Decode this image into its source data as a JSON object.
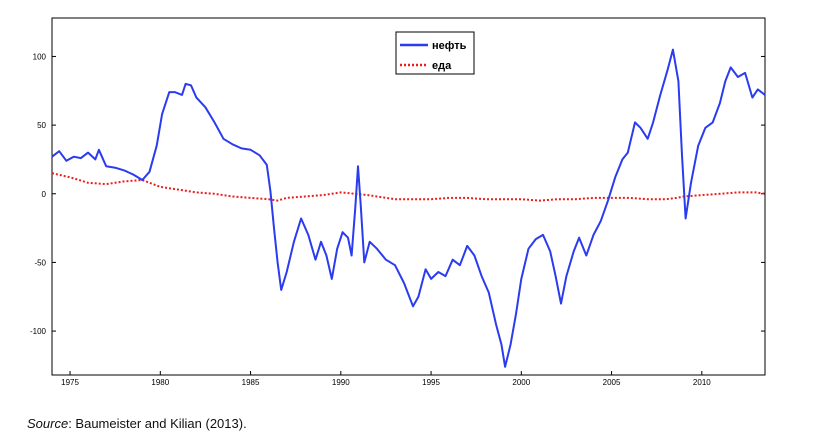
{
  "chart_data": {
    "type": "line",
    "x_ticks": [
      1975,
      1980,
      1985,
      1990,
      1995,
      2000,
      2005,
      2010
    ],
    "y_ticks": [
      100,
      50,
      0,
      -50,
      -100
    ],
    "xlim": [
      1974.0,
      2013.5
    ],
    "ylim": [
      -132,
      128
    ],
    "grid": false,
    "legend_position": "top-center",
    "series": [
      {
        "name": "нефть",
        "color": "#2a3bf0",
        "style": "solid",
        "points": [
          [
            1974.0,
            27
          ],
          [
            1974.4,
            31
          ],
          [
            1974.8,
            24
          ],
          [
            1975.2,
            27
          ],
          [
            1975.6,
            26
          ],
          [
            1976.0,
            30
          ],
          [
            1976.4,
            25
          ],
          [
            1976.6,
            32
          ],
          [
            1977.0,
            20
          ],
          [
            1977.5,
            19
          ],
          [
            1978.0,
            17
          ],
          [
            1978.5,
            14
          ],
          [
            1979.0,
            10
          ],
          [
            1979.4,
            16
          ],
          [
            1979.8,
            35
          ],
          [
            1980.1,
            58
          ],
          [
            1980.5,
            74
          ],
          [
            1980.8,
            74
          ],
          [
            1981.2,
            72
          ],
          [
            1981.4,
            80
          ],
          [
            1981.7,
            79
          ],
          [
            1982.0,
            70
          ],
          [
            1982.5,
            63
          ],
          [
            1983.0,
            52
          ],
          [
            1983.5,
            40
          ],
          [
            1984.0,
            36
          ],
          [
            1984.5,
            33
          ],
          [
            1985.0,
            32
          ],
          [
            1985.5,
            28
          ],
          [
            1985.9,
            21
          ],
          [
            1986.1,
            2
          ],
          [
            1986.3,
            -25
          ],
          [
            1986.5,
            -50
          ],
          [
            1986.7,
            -70
          ],
          [
            1987.0,
            -57
          ],
          [
            1987.4,
            -35
          ],
          [
            1987.8,
            -18
          ],
          [
            1988.2,
            -30
          ],
          [
            1988.6,
            -48
          ],
          [
            1988.9,
            -35
          ],
          [
            1989.2,
            -45
          ],
          [
            1989.5,
            -62
          ],
          [
            1989.8,
            -40
          ],
          [
            1990.1,
            -28
          ],
          [
            1990.4,
            -32
          ],
          [
            1990.6,
            -45
          ],
          [
            1990.8,
            -10
          ],
          [
            1990.95,
            20
          ],
          [
            1991.1,
            -8
          ],
          [
            1991.3,
            -50
          ],
          [
            1991.6,
            -35
          ],
          [
            1992.0,
            -40
          ],
          [
            1992.5,
            -48
          ],
          [
            1993.0,
            -52
          ],
          [
            1993.5,
            -65
          ],
          [
            1994.0,
            -82
          ],
          [
            1994.3,
            -75
          ],
          [
            1994.7,
            -55
          ],
          [
            1995.0,
            -62
          ],
          [
            1995.4,
            -57
          ],
          [
            1995.8,
            -60
          ],
          [
            1996.2,
            -48
          ],
          [
            1996.6,
            -52
          ],
          [
            1997.0,
            -38
          ],
          [
            1997.4,
            -45
          ],
          [
            1997.8,
            -60
          ],
          [
            1998.2,
            -72
          ],
          [
            1998.6,
            -95
          ],
          [
            1998.9,
            -110
          ],
          [
            1999.1,
            -126
          ],
          [
            1999.4,
            -110
          ],
          [
            1999.7,
            -88
          ],
          [
            2000.0,
            -62
          ],
          [
            2000.4,
            -40
          ],
          [
            2000.8,
            -33
          ],
          [
            2001.2,
            -30
          ],
          [
            2001.6,
            -42
          ],
          [
            2001.9,
            -60
          ],
          [
            2002.2,
            -80
          ],
          [
            2002.5,
            -60
          ],
          [
            2002.9,
            -42
          ],
          [
            2003.2,
            -32
          ],
          [
            2003.6,
            -45
          ],
          [
            2004.0,
            -30
          ],
          [
            2004.4,
            -20
          ],
          [
            2004.8,
            -5
          ],
          [
            2005.2,
            12
          ],
          [
            2005.6,
            25
          ],
          [
            2005.9,
            30
          ],
          [
            2006.3,
            52
          ],
          [
            2006.6,
            48
          ],
          [
            2007.0,
            40
          ],
          [
            2007.3,
            52
          ],
          [
            2007.7,
            72
          ],
          [
            2008.1,
            90
          ],
          [
            2008.4,
            105
          ],
          [
            2008.7,
            82
          ],
          [
            2008.9,
            28
          ],
          [
            2009.1,
            -18
          ],
          [
            2009.4,
            8
          ],
          [
            2009.8,
            35
          ],
          [
            2010.2,
            48
          ],
          [
            2010.6,
            52
          ],
          [
            2011.0,
            66
          ],
          [
            2011.3,
            82
          ],
          [
            2011.6,
            92
          ],
          [
            2012.0,
            85
          ],
          [
            2012.4,
            88
          ],
          [
            2012.8,
            70
          ],
          [
            2013.1,
            76
          ],
          [
            2013.5,
            72
          ]
        ]
      },
      {
        "name": "еда",
        "color": "#ee1c1c",
        "style": "dotted",
        "points": [
          [
            1974.0,
            15
          ],
          [
            1975.0,
            12
          ],
          [
            1976.0,
            8
          ],
          [
            1977.0,
            7
          ],
          [
            1978.0,
            9
          ],
          [
            1979.0,
            10
          ],
          [
            1980.0,
            5
          ],
          [
            1981.0,
            3
          ],
          [
            1982.0,
            1
          ],
          [
            1983.0,
            0
          ],
          [
            1984.0,
            -2
          ],
          [
            1985.0,
            -3
          ],
          [
            1986.0,
            -4
          ],
          [
            1986.5,
            -5
          ],
          [
            1987.0,
            -3
          ],
          [
            1988.0,
            -2
          ],
          [
            1989.0,
            -1
          ],
          [
            1990.0,
            1
          ],
          [
            1990.8,
            0
          ],
          [
            1991.5,
            -1
          ],
          [
            1992.0,
            -2
          ],
          [
            1993.0,
            -4
          ],
          [
            1994.0,
            -4
          ],
          [
            1995.0,
            -4
          ],
          [
            1996.0,
            -3
          ],
          [
            1997.0,
            -3
          ],
          [
            1998.0,
            -4
          ],
          [
            1999.0,
            -4
          ],
          [
            2000.0,
            -4
          ],
          [
            2001.0,
            -5
          ],
          [
            2002.0,
            -4
          ],
          [
            2003.0,
            -4
          ],
          [
            2004.0,
            -3
          ],
          [
            2005.0,
            -3
          ],
          [
            2006.0,
            -3
          ],
          [
            2007.0,
            -4
          ],
          [
            2008.0,
            -4
          ],
          [
            2008.6,
            -3
          ],
          [
            2009.0,
            -2
          ],
          [
            2010.0,
            -1
          ],
          [
            2011.0,
            0
          ],
          [
            2012.0,
            1
          ],
          [
            2013.0,
            1
          ],
          [
            2013.5,
            0
          ]
        ]
      }
    ]
  },
  "source": {
    "label": "Source",
    "text": ": Baumeister and Kilian (2013)."
  }
}
